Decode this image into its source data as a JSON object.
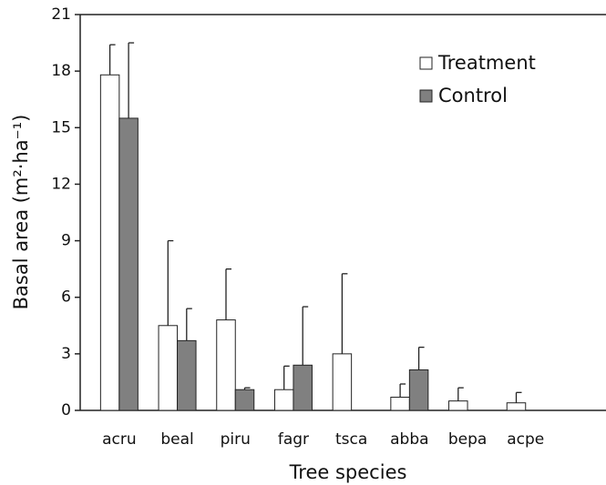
{
  "chart_data": {
    "type": "bar",
    "xlabel": "Tree species",
    "ylabel": "Basal area (m²·ha⁻¹)",
    "categories": [
      "acru",
      "beal",
      "piru",
      "fagr",
      "tsca",
      "abba",
      "bepa",
      "acpe"
    ],
    "series": [
      {
        "name": "Treatment",
        "color": "#ffffff",
        "values": [
          17.8,
          4.5,
          4.8,
          1.1,
          3.0,
          0.7,
          0.5,
          0.4
        ],
        "errors": [
          1.6,
          4.5,
          2.7,
          1.25,
          4.25,
          0.7,
          0.7,
          0.55
        ]
      },
      {
        "name": "Control",
        "color": "#808080",
        "values": [
          15.5,
          3.7,
          1.1,
          2.4,
          null,
          2.15,
          null,
          null
        ],
        "errors": [
          4.0,
          1.7,
          0.1,
          3.1,
          null,
          1.2,
          null,
          null
        ]
      }
    ],
    "ylim": [
      0,
      21
    ],
    "yticks": [
      0,
      3,
      6,
      9,
      12,
      15,
      18,
      21
    ],
    "legend": "upper right"
  }
}
